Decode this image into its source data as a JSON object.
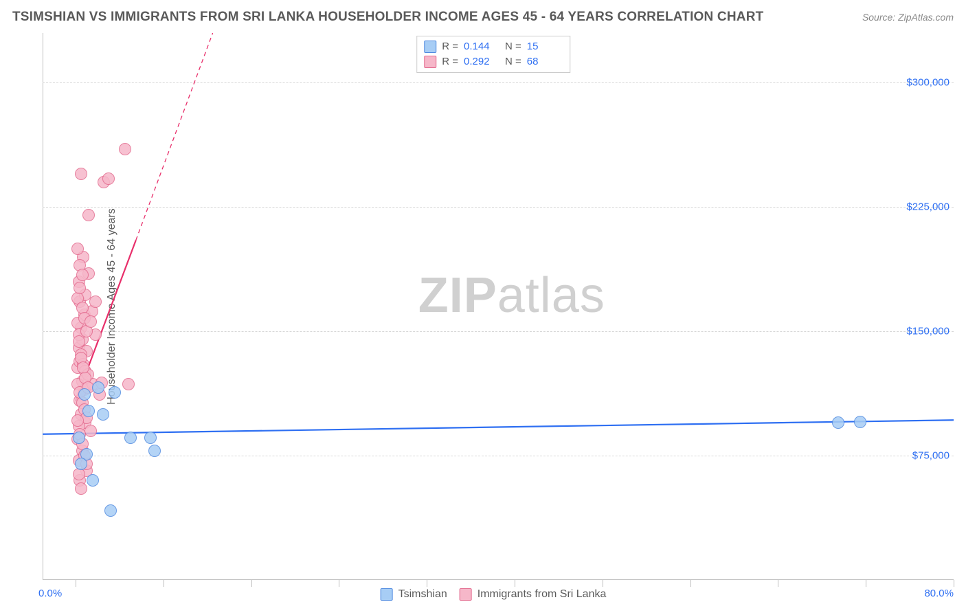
{
  "title": "TSIMSHIAN VS IMMIGRANTS FROM SRI LANKA HOUSEHOLDER INCOME AGES 45 - 64 YEARS CORRELATION CHART",
  "source_label": "Source: ZipAtlas.com",
  "watermark_bold": "ZIP",
  "watermark_thin": "atlas",
  "y_axis_label": "Householder Income Ages 45 - 64 years",
  "chart": {
    "type": "scatter",
    "background_color": "#ffffff",
    "grid_color": "#d7d7d7",
    "axis_color": "#bdbdbd",
    "xlim": [
      -3,
      80
    ],
    "ylim": [
      0,
      330000
    ],
    "x_min_label": "0.0%",
    "x_max_label": "80.0%",
    "y_ticks": [
      75000,
      150000,
      225000,
      300000
    ],
    "y_tick_labels": [
      "$75,000",
      "$150,000",
      "$225,000",
      "$300,000"
    ],
    "x_ticks_pct": [
      0,
      8,
      16,
      24,
      32,
      40,
      48,
      56,
      64,
      72,
      80
    ],
    "marker_radius": 9,
    "marker_stroke_width": 1.5,
    "series": [
      {
        "name": "Tsimshian",
        "color_fill": "#a7cdf5",
        "color_stroke": "#4f8ae0",
        "r_value": "0.144",
        "n_value": "15",
        "trend": {
          "x1": -3,
          "y1": 88000,
          "x2": 80,
          "y2": 96500,
          "color": "#2e6ff2",
          "width": 2.2,
          "dash": "none"
        },
        "points": [
          {
            "x": 0.8,
            "y": 112000
          },
          {
            "x": 1.2,
            "y": 102000
          },
          {
            "x": 2.1,
            "y": 116000
          },
          {
            "x": 3.6,
            "y": 113000
          },
          {
            "x": 2.5,
            "y": 100000
          },
          {
            "x": 0.3,
            "y": 86000
          },
          {
            "x": 1.0,
            "y": 76000
          },
          {
            "x": 5.0,
            "y": 86000
          },
          {
            "x": 6.8,
            "y": 86000
          },
          {
            "x": 7.2,
            "y": 78000
          },
          {
            "x": 1.6,
            "y": 60000
          },
          {
            "x": 3.2,
            "y": 42000
          },
          {
            "x": 69.5,
            "y": 95000
          },
          {
            "x": 71.5,
            "y": 95500
          },
          {
            "x": 0.5,
            "y": 70000
          }
        ]
      },
      {
        "name": "Immigrants from Sri Lanka",
        "color_fill": "#f6b7c9",
        "color_stroke": "#e36a8e",
        "r_value": "0.292",
        "n_value": "68",
        "trend_solid": {
          "x1": 0,
          "y1": 108000,
          "x2": 5.5,
          "y2": 205000,
          "color": "#e82e6a",
          "width": 2.2
        },
        "trend_dash": {
          "x1": 5.5,
          "y1": 205000,
          "x2": 12.5,
          "y2": 330000,
          "color": "#e82e6a",
          "width": 1.3,
          "dash": "6 5"
        },
        "points": [
          {
            "x": 0.2,
            "y": 128000
          },
          {
            "x": 0.4,
            "y": 132000
          },
          {
            "x": 0.3,
            "y": 140000
          },
          {
            "x": 0.6,
            "y": 145000
          },
          {
            "x": 0.5,
            "y": 152000
          },
          {
            "x": 0.8,
            "y": 160000
          },
          {
            "x": 0.4,
            "y": 168000
          },
          {
            "x": 0.9,
            "y": 172000
          },
          {
            "x": 0.3,
            "y": 180000
          },
          {
            "x": 1.2,
            "y": 185000
          },
          {
            "x": 0.7,
            "y": 195000
          },
          {
            "x": 1.5,
            "y": 162000
          },
          {
            "x": 1.8,
            "y": 148000
          },
          {
            "x": 1.0,
            "y": 138000
          },
          {
            "x": 0.6,
            "y": 120000
          },
          {
            "x": 0.8,
            "y": 115000
          },
          {
            "x": 0.4,
            "y": 108000
          },
          {
            "x": 1.6,
            "y": 118000
          },
          {
            "x": 2.4,
            "y": 119000
          },
          {
            "x": 4.8,
            "y": 118000
          },
          {
            "x": 0.5,
            "y": 100000
          },
          {
            "x": 0.9,
            "y": 95000
          },
          {
            "x": 1.4,
            "y": 90000
          },
          {
            "x": 0.2,
            "y": 85000
          },
          {
            "x": 0.6,
            "y": 78000
          },
          {
            "x": 0.3,
            "y": 72000
          },
          {
            "x": 1.0,
            "y": 66000
          },
          {
            "x": 0.4,
            "y": 60000
          },
          {
            "x": 1.2,
            "y": 220000
          },
          {
            "x": 2.6,
            "y": 240000
          },
          {
            "x": 3.0,
            "y": 242000
          },
          {
            "x": 0.5,
            "y": 245000
          },
          {
            "x": 4.5,
            "y": 260000
          },
          {
            "x": 0.2,
            "y": 155000
          },
          {
            "x": 0.3,
            "y": 148000
          },
          {
            "x": 0.5,
            "y": 136000
          },
          {
            "x": 0.7,
            "y": 130000
          },
          {
            "x": 0.9,
            "y": 126000
          },
          {
            "x": 1.1,
            "y": 124000
          },
          {
            "x": 0.2,
            "y": 118000
          },
          {
            "x": 0.4,
            "y": 113000
          },
          {
            "x": 0.6,
            "y": 107000
          },
          {
            "x": 0.8,
            "y": 103000
          },
          {
            "x": 1.0,
            "y": 98000
          },
          {
            "x": 0.3,
            "y": 93000
          },
          {
            "x": 0.2,
            "y": 170000
          },
          {
            "x": 0.4,
            "y": 176000
          },
          {
            "x": 0.6,
            "y": 164000
          },
          {
            "x": 0.8,
            "y": 158000
          },
          {
            "x": 1.0,
            "y": 150000
          },
          {
            "x": 0.3,
            "y": 144000
          },
          {
            "x": 0.5,
            "y": 134000
          },
          {
            "x": 0.7,
            "y": 128000
          },
          {
            "x": 0.9,
            "y": 122000
          },
          {
            "x": 1.1,
            "y": 116000
          },
          {
            "x": 2.2,
            "y": 112000
          },
          {
            "x": 0.2,
            "y": 200000
          },
          {
            "x": 0.4,
            "y": 190000
          },
          {
            "x": 0.6,
            "y": 184000
          },
          {
            "x": 0.2,
            "y": 96000
          },
          {
            "x": 0.4,
            "y": 88000
          },
          {
            "x": 0.6,
            "y": 82000
          },
          {
            "x": 0.8,
            "y": 75000
          },
          {
            "x": 1.0,
            "y": 70000
          },
          {
            "x": 0.3,
            "y": 64000
          },
          {
            "x": 0.5,
            "y": 55000
          },
          {
            "x": 1.8,
            "y": 168000
          },
          {
            "x": 1.4,
            "y": 156000
          }
        ]
      }
    ]
  },
  "legend_top": {
    "r_label": "R =",
    "n_label": "N ="
  },
  "colors": {
    "text_muted": "#5a5a5a",
    "text_value": "#2e6ff2"
  }
}
